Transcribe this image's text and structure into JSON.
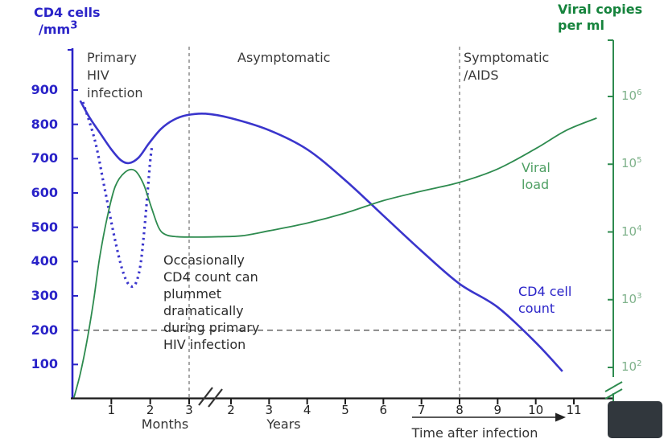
{
  "titles": {
    "left1": "CD4 cells",
    "left2_base": "/mm",
    "left2_sup": "3",
    "right1": "Viral copies",
    "right2": "per ml"
  },
  "phases": {
    "primary": "Primary\nHIV\ninfection",
    "asymptomatic": "Asymptomatic",
    "symptomatic": "Symptomatic\n/AIDS"
  },
  "annotation": "Occasionally\nCD4 count can\nplummet\ndramatically\nduring primary\nHIV infection",
  "series_labels": {
    "viral": "Viral\nload",
    "cd4": "CD4 cell\ncount"
  },
  "x_axis_text": {
    "months_label": "Months",
    "years_label": "Years",
    "time_label": "Time after infection"
  },
  "colors": {
    "cd4_blue": "#2a23c8",
    "cd4_curve": "#3a35cc",
    "viral_green": "#2e8b4f",
    "viral_label_green": "#4e9f63",
    "right_tick_green": "#7fb28b",
    "axis_black": "#1a1a1a",
    "dashed_gray": "#8a8a8a"
  },
  "chart_data": {
    "type": "line",
    "title": "CD4 cell count and viral load over time after HIV infection",
    "x_axis": {
      "label": "Time after infection",
      "broken_scale": true,
      "segments": [
        {
          "name": "Months",
          "ticks": [
            1,
            2,
            3
          ]
        },
        {
          "name": "Years",
          "ticks": [
            2,
            3,
            4,
            5,
            6,
            7,
            8,
            9,
            10,
            11
          ]
        }
      ]
    },
    "y_left": {
      "label": "CD4 cells /mm3",
      "ticks": [
        900,
        800,
        700,
        600,
        500,
        400,
        300,
        200,
        100
      ],
      "range": [
        0,
        950
      ]
    },
    "y_right": {
      "label": "Viral copies per ml",
      "scale": "log",
      "tick_exponents": [
        6,
        5,
        4,
        3,
        2
      ]
    },
    "threshold": {
      "axis": "left",
      "value": 200,
      "style": "dashed"
    },
    "phase_boundaries": [
      {
        "unit": "m",
        "t": 3
      },
      {
        "unit": "y",
        "t": 8
      }
    ],
    "phases": [
      "Primary HIV infection",
      "Asymptomatic",
      "Symptomatic /AIDS"
    ],
    "series": [
      {
        "name": "CD4 cell count",
        "axis": "left",
        "style": "solid",
        "color": "#3a35cc",
        "width": 2.6,
        "points": [
          [
            "m",
            0.2,
            869
          ],
          [
            "m",
            0.45,
            818
          ],
          [
            "m",
            0.72,
            773
          ],
          [
            "m",
            1.0,
            727
          ],
          [
            "m",
            1.24,
            696
          ],
          [
            "m",
            1.45,
            687
          ],
          [
            "m",
            1.7,
            703
          ],
          [
            "m",
            1.97,
            745
          ],
          [
            "m",
            2.28,
            787
          ],
          [
            "m",
            2.6,
            813
          ],
          [
            "m",
            2.95,
            827
          ],
          [
            "g",
            0.4,
            831
          ],
          [
            "y",
            2,
            818
          ],
          [
            "y",
            3,
            783
          ],
          [
            "y",
            4,
            727
          ],
          [
            "y",
            5,
            637
          ],
          [
            "y",
            6,
            534
          ],
          [
            "y",
            7,
            431
          ],
          [
            "y",
            8,
            335
          ],
          [
            "y",
            9,
            267
          ],
          [
            "y",
            10,
            164
          ],
          [
            "y",
            10.7,
            80
          ]
        ]
      },
      {
        "name": "CD4 occasional plummet during primary infection",
        "axis": "left",
        "style": "dotted",
        "color": "#3a35cc",
        "width": 3.2,
        "points": [
          [
            "m",
            0.27,
            865
          ],
          [
            "m",
            0.58,
            752
          ],
          [
            "m",
            0.83,
            612
          ],
          [
            "m",
            1.08,
            471
          ],
          [
            "m",
            1.28,
            377
          ],
          [
            "m",
            1.45,
            333
          ],
          [
            "m",
            1.61,
            333
          ],
          [
            "m",
            1.74,
            384
          ],
          [
            "m",
            1.84,
            483
          ],
          [
            "m",
            1.93,
            600
          ],
          [
            "m",
            2.0,
            694
          ],
          [
            "m",
            2.05,
            740
          ]
        ]
      },
      {
        "name": "Viral load",
        "axis": "right",
        "style": "solid",
        "color": "#2e8b4f",
        "width": 1.8,
        "points": [
          [
            "m",
            0.04,
            36
          ],
          [
            "m",
            0.2,
            80
          ],
          [
            "m",
            0.37,
            240
          ],
          [
            "m",
            0.54,
            930
          ],
          [
            "m",
            0.7,
            4200
          ],
          [
            "m",
            0.9,
            17000
          ],
          [
            "m",
            1.1,
            47000
          ],
          [
            "m",
            1.35,
            76000
          ],
          [
            "m",
            1.6,
            81000
          ],
          [
            "m",
            1.82,
            52000
          ],
          [
            "m",
            2.03,
            23000
          ],
          [
            "m",
            2.22,
            11500
          ],
          [
            "m",
            2.4,
            9100
          ],
          [
            "m",
            2.7,
            8500
          ],
          [
            "g",
            0.2,
            8400
          ],
          [
            "g",
            0.7,
            8500
          ],
          [
            "y",
            2.3,
            8800
          ],
          [
            "y",
            3,
            10400
          ],
          [
            "y",
            4,
            13500
          ],
          [
            "y",
            5,
            19000
          ],
          [
            "y",
            6,
            29000
          ],
          [
            "y",
            7,
            40000
          ],
          [
            "y",
            8,
            54000
          ],
          [
            "y",
            9,
            85000
          ],
          [
            "y",
            10,
            170000
          ],
          [
            "y",
            10.8,
            316000
          ],
          [
            "y",
            11.6,
            480000
          ]
        ]
      }
    ]
  }
}
